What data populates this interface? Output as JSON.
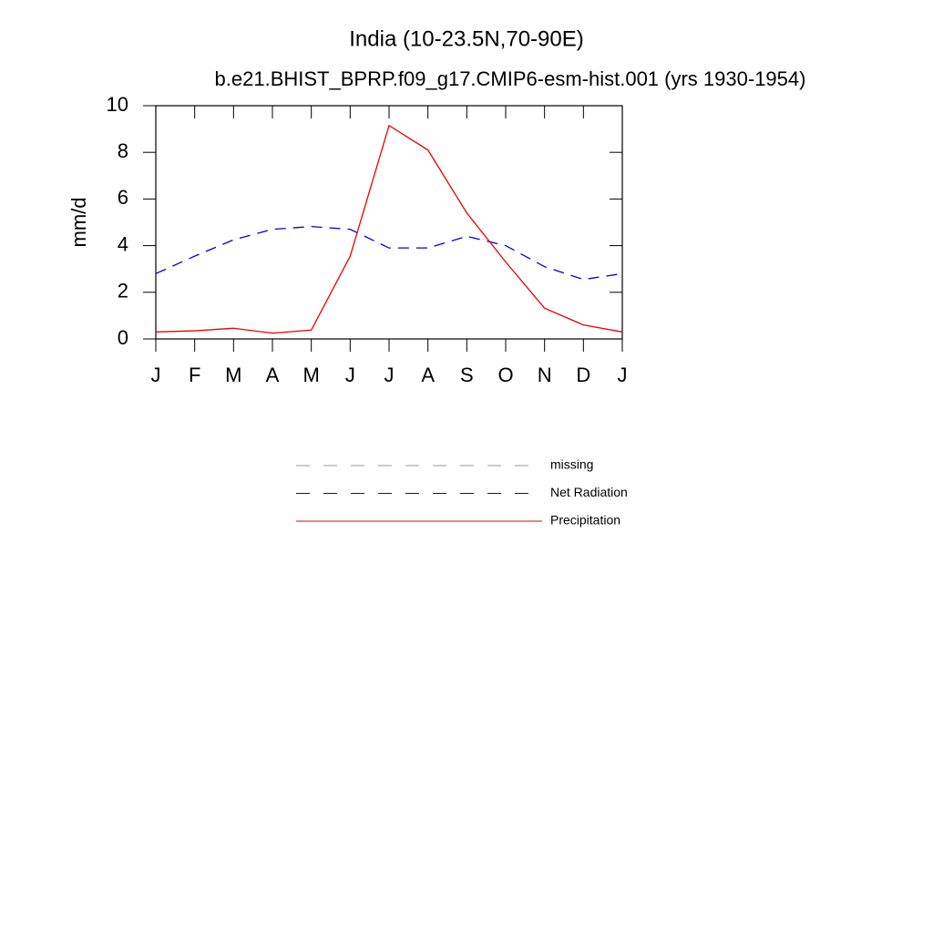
{
  "chart_data": {
    "type": "line",
    "title": "India (10-23.5N,70-90E)",
    "subtitle": "b.e21.BHIST_BPRP.f09_g17.CMIP6-esm-hist.001 (yrs 1930-1954)",
    "y_label": "mm/d",
    "categories": [
      "J",
      "F",
      "M",
      "A",
      "M",
      "J",
      "J",
      "A",
      "S",
      "O",
      "N",
      "D",
      "J"
    ],
    "ylim": [
      0,
      10
    ],
    "yticks": [
      0,
      2,
      4,
      6,
      8,
      10
    ],
    "series": [
      {
        "name": "missing",
        "color": "#999999",
        "dash": true,
        "values": [
          null,
          null,
          null,
          null,
          null,
          null,
          null,
          null,
          null,
          null,
          null,
          null,
          null
        ]
      },
      {
        "name": "Net Radiation",
        "color": "#0000ee",
        "dash": true,
        "values": [
          2.8,
          3.55,
          4.25,
          4.7,
          4.82,
          4.7,
          3.9,
          3.9,
          4.4,
          4.0,
          3.1,
          2.55,
          2.8
        ]
      },
      {
        "name": "Precipitation",
        "color": "#ee0000",
        "dash": false,
        "values": [
          0.3,
          0.35,
          0.46,
          0.25,
          0.38,
          3.55,
          9.15,
          8.1,
          5.4,
          3.3,
          1.32,
          0.6,
          0.3
        ]
      }
    ]
  }
}
